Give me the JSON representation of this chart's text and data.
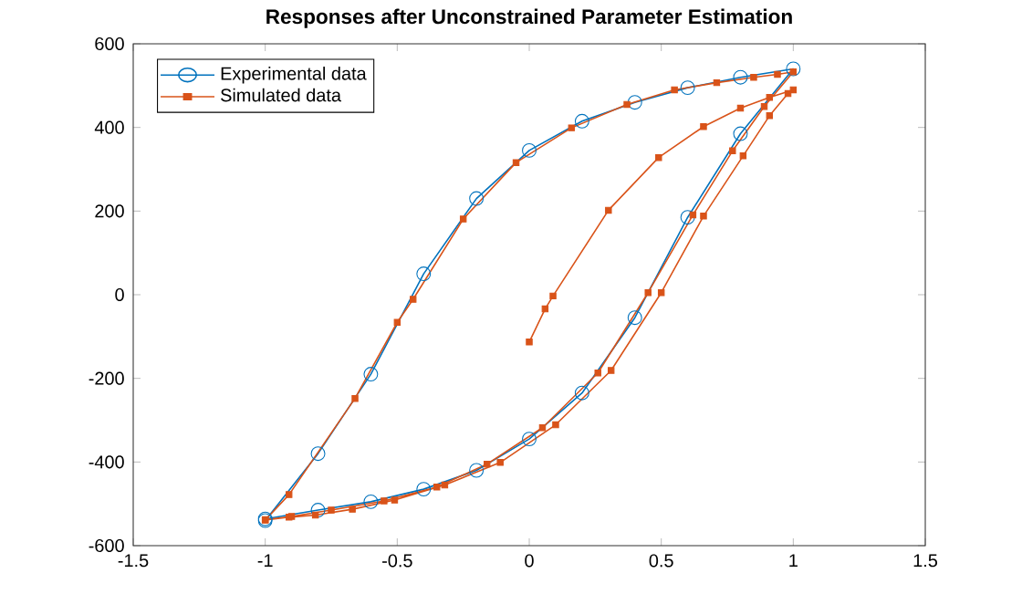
{
  "chart_data": {
    "type": "line",
    "title": "Responses after Unconstrained Parameter Estimation",
    "xlim": [
      -1.5,
      1.5
    ],
    "ylim": [
      -600,
      600
    ],
    "xticks": [
      -1.5,
      -1,
      -0.5,
      0,
      0.5,
      1,
      1.5
    ],
    "yticks": [
      -600,
      -400,
      -200,
      0,
      200,
      400,
      600
    ],
    "grid": false,
    "legend": "top left",
    "series": [
      {
        "name": "Experimental data",
        "color": "#0072bd",
        "marker": "circle",
        "line_style": "solid",
        "x": [
          -1,
          -0.8,
          -0.6,
          -0.4,
          -0.2,
          0,
          0.2,
          0.4,
          0.6,
          0.8,
          1,
          0.8,
          0.6,
          0.4,
          0.2,
          0,
          -0.2,
          -0.4,
          -0.6,
          -0.8,
          -1
        ],
        "values": [
          -540,
          -380,
          -190,
          50,
          230,
          345,
          415,
          460,
          495,
          520,
          540,
          385,
          185,
          -55,
          -235,
          -345,
          -420,
          -465,
          -495,
          -515,
          -536
        ]
      },
      {
        "name": "Simulated data",
        "color": "#d95319",
        "marker": "square",
        "line_style": "solid",
        "x": [
          0,
          0.06,
          0.09,
          0.3,
          0.49,
          0.66,
          0.8,
          0.91,
          1,
          0.98,
          0.91,
          0.81,
          0.66,
          0.5,
          0.31,
          0.1,
          -0.11,
          -0.32,
          -0.51,
          -0.67,
          -0.81,
          -0.91,
          -1,
          -0.91,
          -0.66,
          -0.5,
          -0.44,
          -0.25,
          -0.05,
          0.16,
          0.37,
          0.55,
          0.71,
          0.85,
          0.94,
          1,
          0.89,
          0.77,
          0.62,
          0.45,
          0.26,
          0.05,
          -0.16,
          -0.35,
          -0.55,
          -0.75,
          -0.9,
          -1
        ],
        "values": [
          -113,
          -34,
          -3,
          202,
          328,
          402,
          446,
          472,
          490,
          481,
          428,
          332,
          188,
          5,
          -181,
          -311,
          -401,
          -455,
          -491,
          -513,
          -527,
          -532,
          -539,
          -478,
          -248,
          -66,
          -11,
          181,
          316,
          399,
          455,
          490,
          507,
          520,
          527,
          533,
          450,
          344,
          191,
          5,
          -187,
          -318,
          -405,
          -460,
          -493,
          -515,
          -530,
          -538
        ]
      }
    ]
  }
}
